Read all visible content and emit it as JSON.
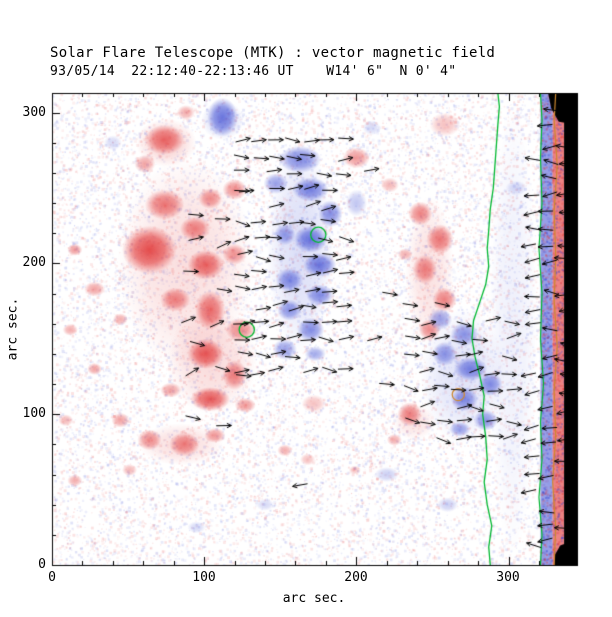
{
  "figure": {
    "title": "Solar Flare Telescope (MTK) : vector magnetic field",
    "subtitle": "93/05/14  22:12:40-22:13:46 UT    W14' 6\"  N 0' 4\""
  },
  "axes": {
    "xlabel": "arc sec.",
    "ylabel": "arc sec.",
    "xtick_labels": [
      "0",
      "100",
      "200",
      "300"
    ],
    "ytick_labels": [
      "0",
      "100",
      "200",
      "300"
    ]
  },
  "chart_data": {
    "type": "heatmap",
    "title": "Solar Flare Telescope (MTK) : vector magnetic field",
    "subtitle": "93/05/14  22:12:40-22:13:46 UT    W14' 6\"  N 0' 4\"",
    "description": "Vector magnetogram: red = positive line-of-sight polarity, blue = negative polarity, black arrows = transverse field vectors, green/orange lines = contours, black band = off-limb edge",
    "xlabel": "arc sec.",
    "ylabel": "arc sec.",
    "xlim": [
      0,
      345
    ],
    "ylim": [
      0,
      313
    ],
    "xticks": [
      0,
      100,
      200,
      300
    ],
    "yticks": [
      0,
      100,
      200,
      300
    ],
    "minor_tick_interval": 20,
    "grid": false,
    "colors": {
      "positive": "#e03030",
      "negative": "#3040d0",
      "contour_green": "#00b830",
      "contour_orange": "#cc8830",
      "vector": "#000000",
      "black": "#000000",
      "frame": "#000000",
      "background": "#ffffff"
    },
    "noise": {
      "count": 18000,
      "alpha_min": 0.04,
      "alpha_max": 0.15
    },
    "positive_regions": [
      [
        75,
        280,
        20,
        16,
        0.22
      ],
      [
        88,
        200,
        45,
        70,
        0.16
      ],
      [
        105,
        135,
        30,
        35,
        0.18
      ],
      [
        248,
        195,
        16,
        50,
        0.15
      ],
      [
        85,
        80,
        28,
        14,
        0.16
      ],
      [
        238,
        95,
        14,
        12,
        0.14
      ],
      [
        74,
        282,
        13,
        10,
        0.7
      ],
      [
        88,
        300,
        6,
        5,
        0.4
      ],
      [
        61,
        266,
        7,
        6,
        0.45
      ],
      [
        200,
        270,
        9,
        7,
        0.5
      ],
      [
        222,
        252,
        6,
        5,
        0.35
      ],
      [
        74,
        239,
        13,
        10,
        0.65
      ],
      [
        64,
        209,
        18,
        16,
        0.85
      ],
      [
        94,
        223,
        10,
        8,
        0.6
      ],
      [
        104,
        243,
        8,
        7,
        0.55
      ],
      [
        120,
        249,
        8,
        7,
        0.55
      ],
      [
        101,
        199,
        12,
        10,
        0.75
      ],
      [
        120,
        206,
        8,
        7,
        0.5
      ],
      [
        81,
        176,
        10,
        8,
        0.6
      ],
      [
        104,
        169,
        10,
        13,
        0.7
      ],
      [
        124,
        156,
        10,
        8,
        0.55
      ],
      [
        101,
        140,
        12,
        10,
        0.8
      ],
      [
        120,
        126,
        8,
        10,
        0.6
      ],
      [
        104,
        110,
        13,
        8,
        0.8
      ],
      [
        127,
        106,
        7,
        5,
        0.5
      ],
      [
        78,
        116,
        7,
        5,
        0.45
      ],
      [
        15,
        209,
        5,
        4,
        0.5
      ],
      [
        28,
        183,
        7,
        5,
        0.45
      ],
      [
        12,
        156,
        5,
        4,
        0.4
      ],
      [
        45,
        163,
        5,
        4,
        0.4
      ],
      [
        28,
        130,
        5,
        4,
        0.45
      ],
      [
        9,
        96,
        5,
        4,
        0.35
      ],
      [
        45,
        96,
        6,
        5,
        0.45
      ],
      [
        15,
        56,
        5,
        4,
        0.4
      ],
      [
        51,
        63,
        5,
        4,
        0.35
      ],
      [
        64,
        83,
        8,
        7,
        0.55
      ],
      [
        87,
        80,
        10,
        8,
        0.6
      ],
      [
        107,
        86,
        7,
        5,
        0.5
      ],
      [
        153,
        76,
        5,
        4,
        0.4
      ],
      [
        168,
        70,
        5,
        4,
        0.3
      ],
      [
        199,
        63,
        4,
        3,
        0.3
      ],
      [
        172,
        107,
        8,
        6,
        0.3
      ],
      [
        242,
        233,
        8,
        8,
        0.6
      ],
      [
        255,
        216,
        9,
        10,
        0.65
      ],
      [
        245,
        196,
        8,
        10,
        0.6
      ],
      [
        258,
        176,
        8,
        8,
        0.6
      ],
      [
        248,
        156,
        7,
        7,
        0.55
      ],
      [
        232,
        206,
        5,
        4,
        0.4
      ],
      [
        235,
        100,
        8,
        8,
        0.6
      ],
      [
        225,
        83,
        5,
        4,
        0.4
      ],
      [
        258,
        292,
        10,
        8,
        0.3
      ]
    ],
    "negative_regions": [
      [
        163,
        210,
        22,
        70,
        0.18
      ],
      [
        112,
        295,
        14,
        13,
        0.22
      ],
      [
        270,
        125,
        28,
        45,
        0.15
      ],
      [
        303,
        157,
        16,
        150,
        0.08
      ],
      [
        112,
        297,
        10,
        13,
        0.65
      ],
      [
        163,
        269,
        14,
        9,
        0.6
      ],
      [
        147,
        253,
        8,
        7,
        0.5
      ],
      [
        170,
        249,
        12,
        8,
        0.65
      ],
      [
        183,
        233,
        8,
        9,
        0.6
      ],
      [
        170,
        216,
        11,
        9,
        0.7
      ],
      [
        153,
        219,
        7,
        7,
        0.5
      ],
      [
        176,
        199,
        11,
        8,
        0.7
      ],
      [
        156,
        189,
        9,
        8,
        0.6
      ],
      [
        176,
        179,
        9,
        7,
        0.6
      ],
      [
        156,
        169,
        8,
        7,
        0.55
      ],
      [
        170,
        156,
        9,
        8,
        0.6
      ],
      [
        153,
        143,
        8,
        7,
        0.5
      ],
      [
        173,
        140,
        7,
        5,
        0.45
      ],
      [
        200,
        240,
        7,
        9,
        0.3
      ],
      [
        255,
        163,
        8,
        7,
        0.5
      ],
      [
        271,
        153,
        9,
        8,
        0.55
      ],
      [
        258,
        140,
        8,
        8,
        0.55
      ],
      [
        275,
        130,
        11,
        8,
        0.65
      ],
      [
        288,
        120,
        8,
        8,
        0.6
      ],
      [
        271,
        110,
        9,
        8,
        0.6
      ],
      [
        285,
        96,
        8,
        7,
        0.55
      ],
      [
        268,
        90,
        7,
        5,
        0.5
      ],
      [
        40,
        280,
        6,
        5,
        0.2
      ],
      [
        210,
        290,
        6,
        5,
        0.2
      ],
      [
        220,
        60,
        8,
        5,
        0.25
      ],
      [
        140,
        40,
        6,
        4,
        0.2
      ],
      [
        95,
        25,
        6,
        4,
        0.2
      ],
      [
        260,
        40,
        7,
        5,
        0.25
      ],
      [
        305,
        250,
        7,
        5,
        0.2
      ]
    ],
    "edge_bands": [
      {
        "x0": 321,
        "x1": 329,
        "color": "negative",
        "alpha": 0.5,
        "speckle": true
      },
      {
        "x0": 329,
        "x1": 336.5,
        "color": "positive",
        "alpha": 0.6,
        "speckle": true
      }
    ],
    "black_patches": [
      [
        [
          336.5,
          0
        ],
        [
          345,
          0
        ],
        [
          345,
          313
        ],
        [
          336.5,
          313
        ]
      ],
      [
        [
          326,
          313
        ],
        [
          345,
          313
        ],
        [
          345,
          292
        ],
        [
          333,
          294
        ],
        [
          328,
          303
        ]
      ],
      [
        [
          330,
          0
        ],
        [
          345,
          0
        ],
        [
          345,
          17
        ],
        [
          334,
          13
        ],
        [
          330,
          6
        ]
      ]
    ],
    "contours": {
      "green_main": [
        [
          288,
          0
        ],
        [
          287,
          12
        ],
        [
          289,
          26
        ],
        [
          286,
          40
        ],
        [
          284,
          55
        ],
        [
          286,
          70
        ],
        [
          285,
          85
        ],
        [
          283,
          100
        ],
        [
          284,
          112
        ],
        [
          281,
          126
        ],
        [
          278,
          138
        ],
        [
          276,
          150
        ],
        [
          277,
          162
        ],
        [
          281,
          174
        ],
        [
          285,
          186
        ],
        [
          287,
          198
        ],
        [
          286,
          210
        ],
        [
          287,
          222
        ],
        [
          288,
          236
        ],
        [
          290,
          250
        ],
        [
          291,
          264
        ],
        [
          292,
          278
        ],
        [
          293,
          292
        ],
        [
          294,
          304
        ],
        [
          293,
          313
        ]
      ],
      "green_edge": [
        [
          321,
          0
        ],
        [
          322,
          20
        ],
        [
          320,
          45
        ],
        [
          322,
          70
        ],
        [
          321,
          95
        ],
        [
          323,
          120
        ],
        [
          321,
          150
        ],
        [
          322,
          180
        ],
        [
          320,
          210
        ],
        [
          322,
          240
        ],
        [
          321,
          270
        ],
        [
          322,
          295
        ],
        [
          321,
          313
        ]
      ],
      "orange_edge": [
        [
          330,
          0
        ],
        [
          331,
          25
        ],
        [
          329,
          55
        ],
        [
          331,
          85
        ],
        [
          330,
          115
        ],
        [
          332,
          145
        ],
        [
          330,
          175
        ],
        [
          331,
          205
        ],
        [
          330,
          235
        ],
        [
          332,
          265
        ],
        [
          330,
          295
        ],
        [
          331,
          313
        ]
      ],
      "circles": [
        {
          "x": 175,
          "y": 219,
          "r": 5,
          "color": "green"
        },
        {
          "x": 128,
          "y": 156,
          "r": 5,
          "color": "green"
        },
        {
          "x": 267,
          "y": 113,
          "r": 4,
          "color": "orange"
        }
      ]
    },
    "vector_clusters": [
      {
        "x0": 126,
        "x1": 202,
        "y0": 128,
        "y1": 290,
        "step": 11,
        "angle": 0,
        "jitter": 20,
        "len": 10,
        "skip": 0.22
      },
      {
        "x0": 93,
        "x1": 136,
        "y0": 95,
        "y1": 258,
        "step": 17,
        "angle": 5,
        "jitter": 30,
        "len": 10,
        "skip": 0.5
      },
      {
        "x0": 236,
        "x1": 306,
        "y0": 84,
        "y1": 180,
        "step": 11,
        "angle": 0,
        "jitter": 22,
        "len": 10,
        "skip": 0.3
      },
      {
        "x0": 315,
        "x1": 343,
        "y0": 4,
        "y1": 310,
        "step": 11,
        "angle": 180,
        "jitter": 18,
        "len": 10,
        "skip": 0.3
      }
    ],
    "extra_vectors": [
      {
        "x": 163,
        "y": 53,
        "angle": 190
      },
      {
        "x": 210,
        "y": 262,
        "angle": 10
      },
      {
        "x": 222,
        "y": 180,
        "angle": 350
      },
      {
        "x": 212,
        "y": 150,
        "angle": 15
      },
      {
        "x": 220,
        "y": 120,
        "angle": 355
      }
    ]
  }
}
